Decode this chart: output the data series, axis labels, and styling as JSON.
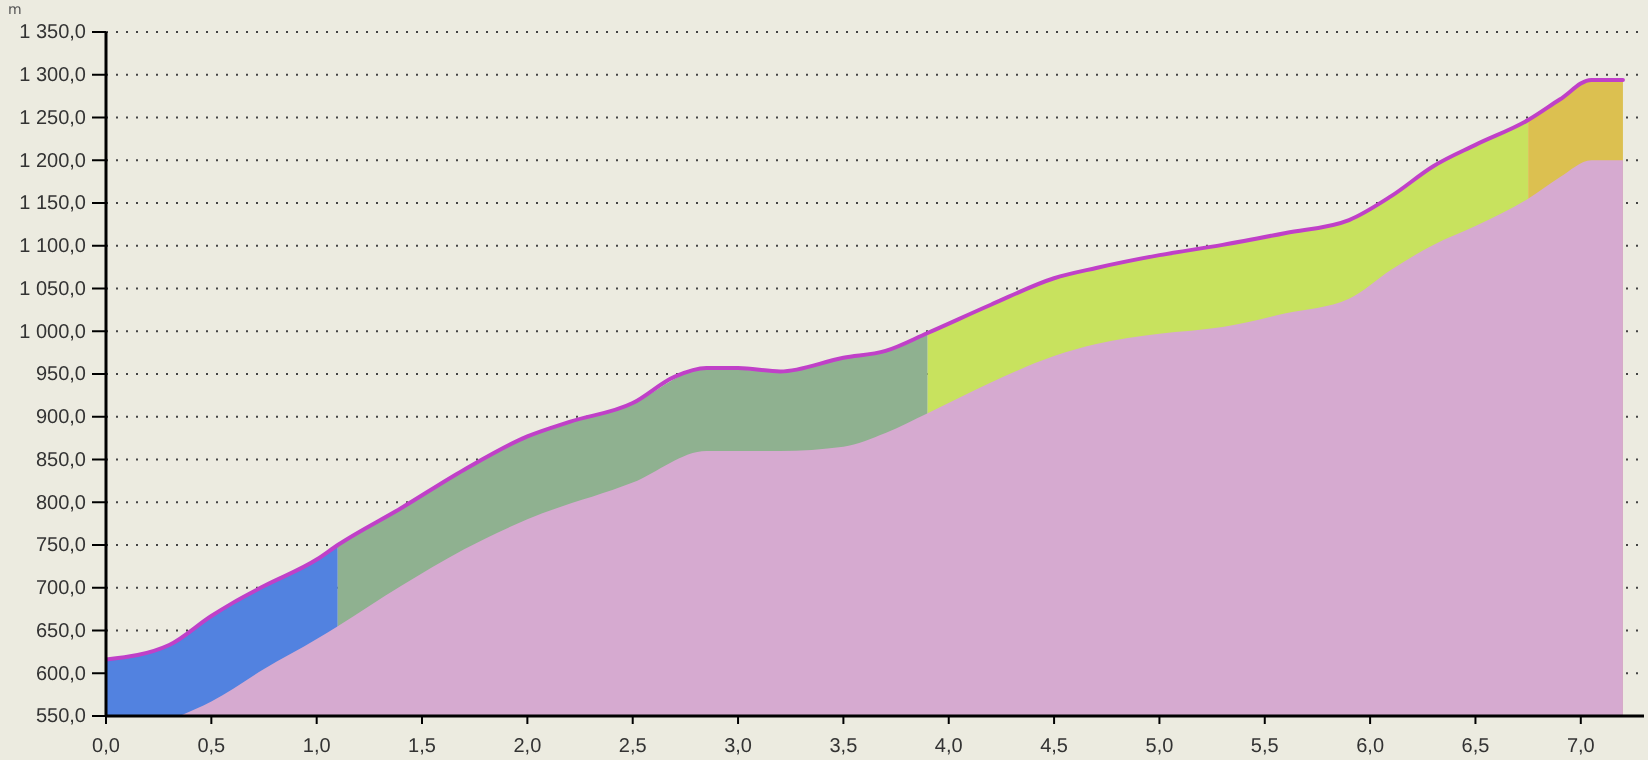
{
  "chart_data": {
    "type": "area",
    "ylabel": "m",
    "xlim": [
      0,
      7.3
    ],
    "ylim": [
      550,
      1350
    ],
    "xticks": [
      {
        "value": 0,
        "label": "0,0"
      },
      {
        "value": 0.5,
        "label": "0,5"
      },
      {
        "value": 1,
        "label": "1,0"
      },
      {
        "value": 1.5,
        "label": "1,5"
      },
      {
        "value": 2,
        "label": "2,0"
      },
      {
        "value": 2.5,
        "label": "2,5"
      },
      {
        "value": 3,
        "label": "3,0"
      },
      {
        "value": 3.5,
        "label": "3,5"
      },
      {
        "value": 4,
        "label": "4,0"
      },
      {
        "value": 4.5,
        "label": "4,5"
      },
      {
        "value": 5,
        "label": "5,0"
      },
      {
        "value": 5.5,
        "label": "5,5"
      },
      {
        "value": 6,
        "label": "6,0"
      },
      {
        "value": 6.5,
        "label": "6,5"
      },
      {
        "value": 7,
        "label": "7,0"
      }
    ],
    "yticks": [
      {
        "value": 550,
        "label": "550,0"
      },
      {
        "value": 600,
        "label": "600,0"
      },
      {
        "value": 650,
        "label": "650,0"
      },
      {
        "value": 700,
        "label": "700,0"
      },
      {
        "value": 750,
        "label": "750,0"
      },
      {
        "value": 800,
        "label": "800,0"
      },
      {
        "value": 850,
        "label": "850,0"
      },
      {
        "value": 900,
        "label": "900,0"
      },
      {
        "value": 950,
        "label": "950,0"
      },
      {
        "value": 1000,
        "label": "1 000,0"
      },
      {
        "value": 1050,
        "label": "1 050,0"
      },
      {
        "value": 1100,
        "label": "1 100,0"
      },
      {
        "value": 1150,
        "label": "1 150,0"
      },
      {
        "value": 1200,
        "label": "1 200,0"
      },
      {
        "value": 1250,
        "label": "1 250,0"
      },
      {
        "value": 1300,
        "label": "1 300,0"
      },
      {
        "value": 1350,
        "label": "1 350,0"
      }
    ],
    "grid": "y",
    "series": [
      {
        "color": "#5282e0",
        "x": [
          0,
          0.3,
          0.5,
          0.75,
          1.0,
          1.1
        ],
        "values": [
          616,
          633,
          667,
          702,
          733,
          750
        ]
      },
      {
        "color": "#8fb190",
        "x": [
          1.1,
          1.4,
          1.7,
          2.0,
          2.5,
          2.85,
          3.2,
          3.5,
          3.7,
          3.9
        ],
        "values": [
          750,
          793,
          838,
          877,
          916,
          957,
          953,
          969,
          977,
          998
        ]
      },
      {
        "color": "#c8e25e",
        "x": [
          3.9,
          4.2,
          4.5,
          4.7,
          5.0,
          5.3,
          5.6,
          5.9,
          6.1,
          6.3,
          6.5,
          6.75
        ],
        "values": [
          998,
          1031,
          1062,
          1074,
          1089,
          1101,
          1115,
          1130,
          1158,
          1193,
          1218,
          1247
        ]
      },
      {
        "color": "#dcc050",
        "x": [
          6.75,
          6.9,
          7.05,
          7.2
        ],
        "values": [
          1247,
          1271,
          1294,
          1294
        ]
      },
      {
        "color": "#d6aad0",
        "x": [
          0.35,
          0.5,
          0.75,
          1.0,
          1.1,
          1.4,
          1.7,
          2.0,
          2.5,
          2.85,
          3.2,
          3.5,
          3.7,
          3.9,
          4.2,
          4.5,
          4.7,
          5.0,
          5.3,
          5.6,
          5.9,
          6.1,
          6.3,
          6.5,
          6.75,
          6.9,
          7.05,
          7.2
        ],
        "values": [
          550,
          567,
          605,
          640,
          655,
          702,
          745,
          780,
          823,
          860,
          860,
          865,
          881,
          904,
          940,
          971,
          985,
          997,
          1005,
          1021,
          1038,
          1072,
          1101,
          1123,
          1155,
          1180,
          1200,
          1200
        ]
      },
      {
        "type": "line",
        "color": "#c040c8",
        "x": [
          0,
          0.3,
          0.5,
          0.6,
          0.75,
          1.0,
          1.1,
          1.4,
          1.7,
          2.0,
          2.2,
          2.5,
          2.7,
          2.85,
          3.0,
          3.2,
          3.5,
          3.7,
          3.9,
          4.2,
          4.5,
          4.7,
          5.0,
          5.3,
          5.6,
          5.9,
          6.1,
          6.3,
          6.5,
          6.75,
          6.9,
          7.05,
          7.2
        ],
        "values": [
          616,
          633,
          667,
          682,
          702,
          733,
          750,
          793,
          838,
          877,
          894,
          916,
          947,
          957,
          957,
          953,
          969,
          977,
          998,
          1031,
          1062,
          1074,
          1089,
          1101,
          1115,
          1130,
          1158,
          1193,
          1218,
          1247,
          1271,
          1294,
          1294
        ]
      }
    ]
  }
}
